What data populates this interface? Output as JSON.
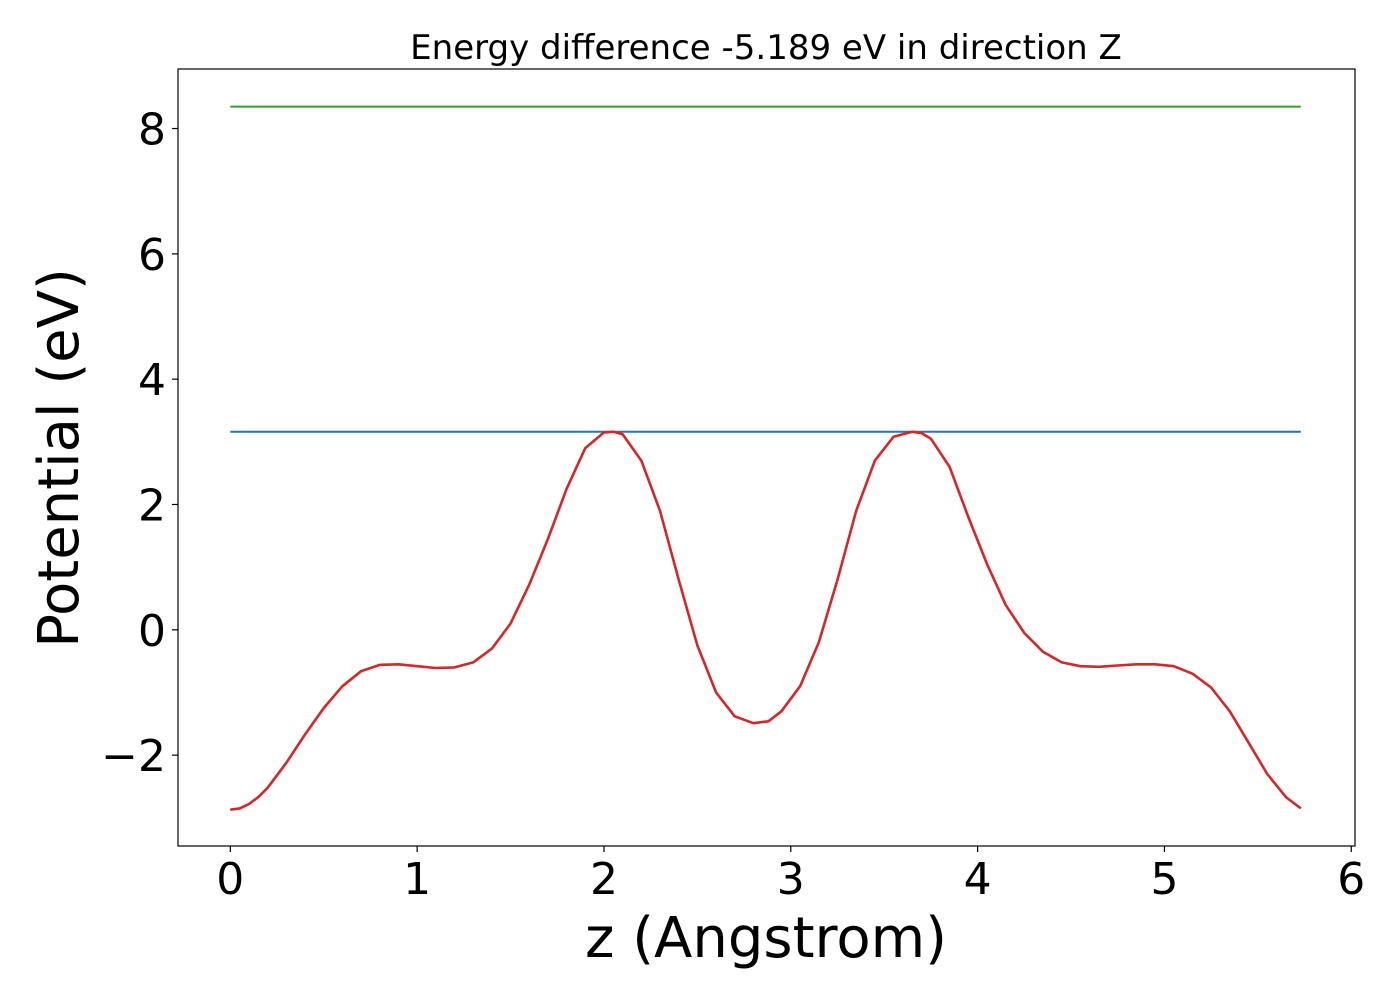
{
  "chart_data": {
    "type": "line",
    "title": "Energy difference -5.189 eV in direction Z",
    "xlabel": "z (Angstrom)",
    "ylabel": "Potential (eV)",
    "xlim": [
      -0.28,
      6.02
    ],
    "ylim": [
      -3.45,
      8.95
    ],
    "xticks": [
      0,
      1,
      2,
      3,
      4,
      5,
      6
    ],
    "xtick_labels": [
      "0",
      "1",
      "2",
      "3",
      "4",
      "5",
      "6"
    ],
    "yticks": [
      -2,
      0,
      2,
      4,
      6,
      8
    ],
    "ytick_labels": [
      "−2",
      "0",
      "2",
      "4",
      "6",
      "8"
    ],
    "grid": false,
    "series": [
      {
        "color": "#2ca02c",
        "x": [
          0,
          5.73
        ],
        "y": [
          8.35,
          8.35
        ]
      },
      {
        "color": "#1f77b4",
        "x": [
          0,
          5.73
        ],
        "y": [
          3.16,
          3.16
        ]
      },
      {
        "color": "#d62728",
        "x": [
          0.0,
          0.05,
          0.1,
          0.15,
          0.2,
          0.3,
          0.4,
          0.5,
          0.6,
          0.7,
          0.8,
          0.9,
          1.0,
          1.1,
          1.2,
          1.3,
          1.4,
          1.5,
          1.6,
          1.7,
          1.8,
          1.9,
          2.0,
          2.05,
          2.1,
          2.2,
          2.3,
          2.4,
          2.5,
          2.6,
          2.7,
          2.8,
          2.88,
          2.95,
          3.05,
          3.15,
          3.25,
          3.35,
          3.45,
          3.55,
          3.65,
          3.7,
          3.75,
          3.85,
          3.95,
          4.05,
          4.15,
          4.25,
          4.35,
          4.45,
          4.55,
          4.65,
          4.75,
          4.85,
          4.95,
          5.05,
          5.15,
          5.25,
          5.35,
          5.45,
          5.55,
          5.65,
          5.73
        ],
        "y": [
          -2.87,
          -2.85,
          -2.78,
          -2.67,
          -2.52,
          -2.12,
          -1.67,
          -1.25,
          -0.9,
          -0.66,
          -0.56,
          -0.55,
          -0.58,
          -0.61,
          -0.6,
          -0.52,
          -0.3,
          0.1,
          0.72,
          1.45,
          2.25,
          2.9,
          3.15,
          3.16,
          3.12,
          2.7,
          1.9,
          0.8,
          -0.25,
          -1.0,
          -1.38,
          -1.49,
          -1.46,
          -1.3,
          -0.9,
          -0.2,
          0.8,
          1.9,
          2.7,
          3.08,
          3.16,
          3.14,
          3.05,
          2.6,
          1.8,
          1.05,
          0.4,
          -0.05,
          -0.35,
          -0.52,
          -0.58,
          -0.59,
          -0.57,
          -0.55,
          -0.55,
          -0.58,
          -0.7,
          -0.92,
          -1.3,
          -1.8,
          -2.3,
          -2.67,
          -2.85
        ]
      }
    ]
  }
}
